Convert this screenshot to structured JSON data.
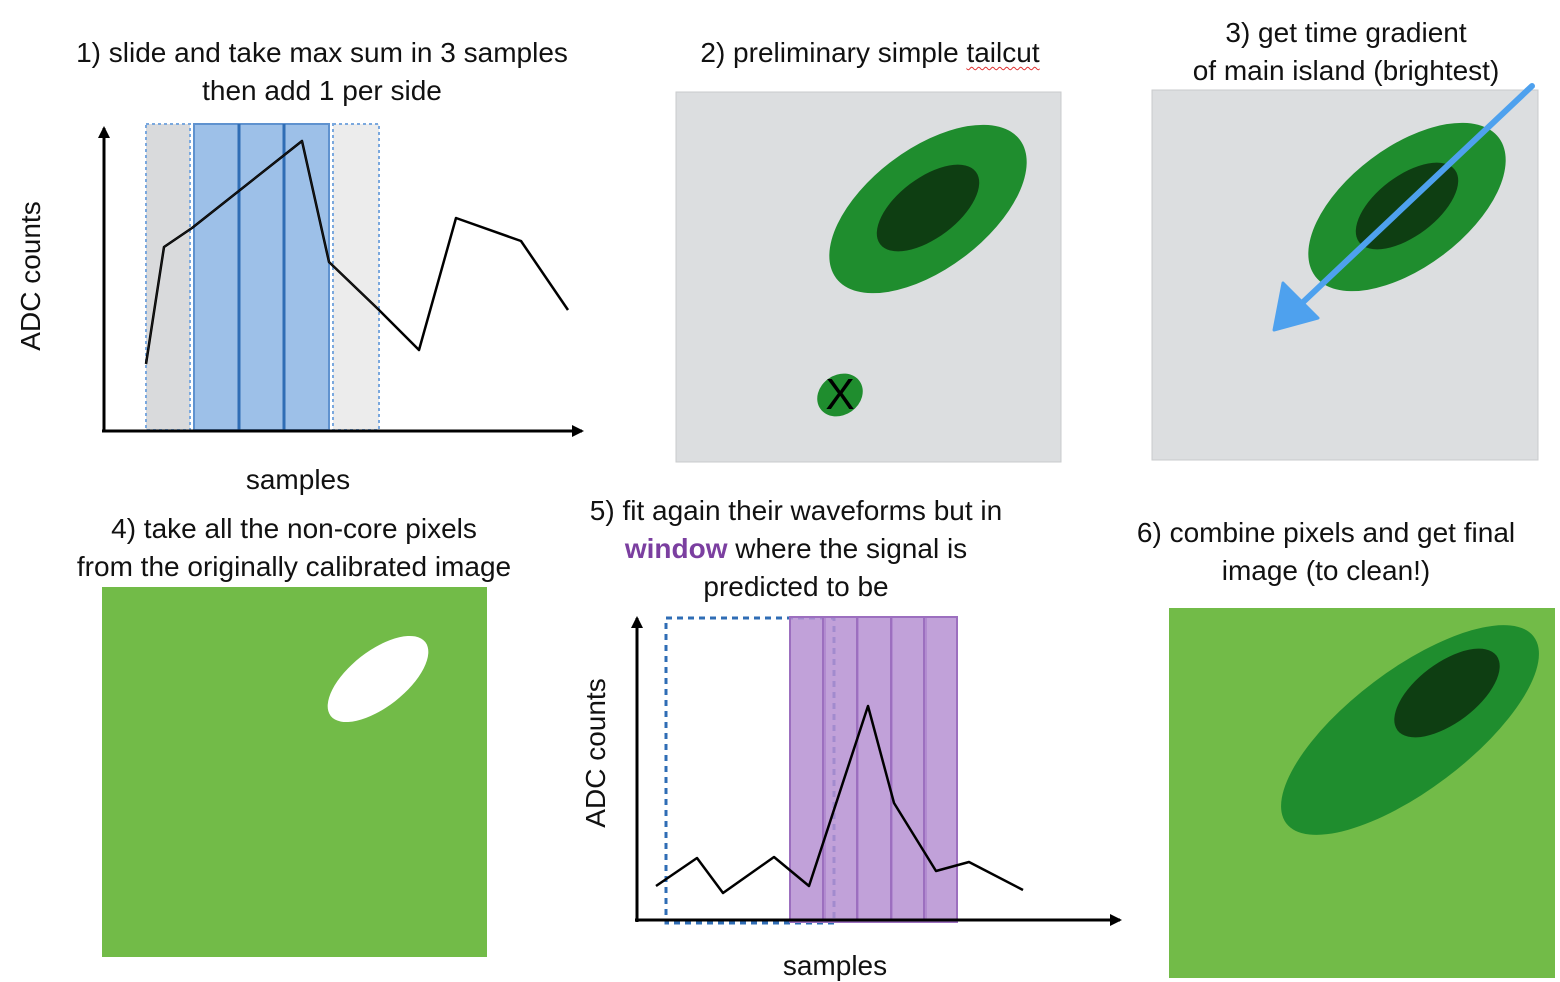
{
  "panels": [
    {
      "step": "1",
      "caption_line1": "1) slide and take max sum in 3 samples",
      "caption_line2": "then add 1 per side",
      "xlabel": "samples",
      "ylabel": "ADC counts"
    },
    {
      "step": "2",
      "caption_prefix": "2) preliminary simple ",
      "caption_flagged_word": "tailcut",
      "reject_mark": "X"
    },
    {
      "step": "3",
      "caption_line1": "3) get time gradient",
      "caption_line2": "of main island (brightest)"
    },
    {
      "step": "4",
      "caption_line1": "4) take all the non-core pixels",
      "caption_line2": "from the originally calibrated image"
    },
    {
      "step": "5",
      "caption_line1": "5) fit again their waveforms but in",
      "caption_highlight": "window",
      "caption_line2_rest": " where the signal is",
      "caption_line3": "predicted to be",
      "xlabel": "samples",
      "ylabel": "ADC counts"
    },
    {
      "step": "6",
      "caption_line1": "6) combine pixels and get final",
      "caption_line2": "image (to clean!)"
    }
  ],
  "colors": {
    "panel_gray": "#dcdee0",
    "green_light": "#72bb48",
    "green_mid": "#1f8d2e",
    "green_dark": "#0e3e12",
    "blue_window": "#7aa8de",
    "blue_line": "#2f6db5",
    "purple_window": "#b690d2",
    "arrow_blue": "#4ea1ee",
    "highlight_purple": "#7b3fa0"
  }
}
